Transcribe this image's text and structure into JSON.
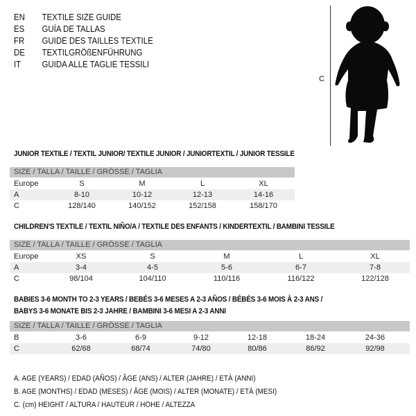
{
  "languages": [
    {
      "code": "EN",
      "text": "TEXTILE SIZE GUIDE"
    },
    {
      "code": "ES",
      "text": "GUÍA DE TALLAS"
    },
    {
      "code": "FR",
      "text": "GUIDE DES TAILLES TEXTILE"
    },
    {
      "code": "DE",
      "text": "TEXTILGRÖßENFÜHRUNG"
    },
    {
      "code": "IT",
      "text": "GUIDA ALLE TAGLIE TESSILI"
    }
  ],
  "figure": {
    "measure_label": "C"
  },
  "junior": {
    "title": "JUNIOR TEXTILE / TEXTIL JUNIOR/ TEXTILE JUNIOR / JUNIORTEXTIL / JUNIOR TESSILE",
    "header": "SIZE / TALLA / TAILLE / GRÖSSE / TAGLIA",
    "rows": [
      {
        "label": "Europe",
        "cells": [
          "S",
          "M",
          "L",
          "XL"
        ]
      },
      {
        "label": "A",
        "cells": [
          "8-10",
          "10-12",
          "12-13",
          "14-16"
        ]
      },
      {
        "label": "C",
        "cells": [
          "128/140",
          "140/152",
          "152/158",
          "158/170"
        ]
      }
    ]
  },
  "children": {
    "title": "CHILDREN'S TEXTILE / TEXTIL NIÑO/A / TEXTILE DES ENFANTS / KINDERTEXTIL / BAMBINI TESSILE",
    "header": "SIZE / TALLA / TAILLE / GRÖSSE / TAGLIA",
    "rows": [
      {
        "label": "Europe",
        "cells": [
          "XS",
          "S",
          "M",
          "L",
          "XL"
        ]
      },
      {
        "label": "A",
        "cells": [
          "3-4",
          "4-5",
          "5-6",
          "6-7",
          "7-8"
        ]
      },
      {
        "label": "C",
        "cells": [
          "98/104",
          "104/110",
          "110/116",
          "116/122",
          "122/128"
        ]
      }
    ]
  },
  "babies": {
    "title_line1": "BABIES 3-6 MONTH TO 2-3 YEARS / BEBÉS 3-6 MESES A 2-3 AÑOS / BÉBÉS 3-6 MOIS À 2-3 ANS /",
    "title_line2": "BABYS 3-6 MONATE BIS 2-3 JAHRE / BAMBINI 3-6 MESI A 2-3 ANNI",
    "header": "SIZE / TALLA / TAILLE / GRÖSSE / TAGLIA",
    "rows": [
      {
        "label": "B",
        "cells": [
          "3-6",
          "6-9",
          "9-12",
          "12-18",
          "18-24",
          "24-36"
        ]
      },
      {
        "label": "C",
        "cells": [
          "62/68",
          "68/74",
          "74/80",
          "80/86",
          "86/92",
          "92/98"
        ]
      }
    ]
  },
  "legend": [
    "A. AGE (YEARS) / EDAD (AÑOS) / ÂGE (ANS) / ALTER (JAHRE) / ETÀ (ANNI)",
    "B. AGE (MONTHS) / EDAD (MESES) / ÂGE (MOIS) / ALTER (MONATE) / ETÀ (MESI)",
    "C. (cm) HEIGHT / ALTURA / HAUTEUR / HÖHE / ALTEZZA"
  ]
}
